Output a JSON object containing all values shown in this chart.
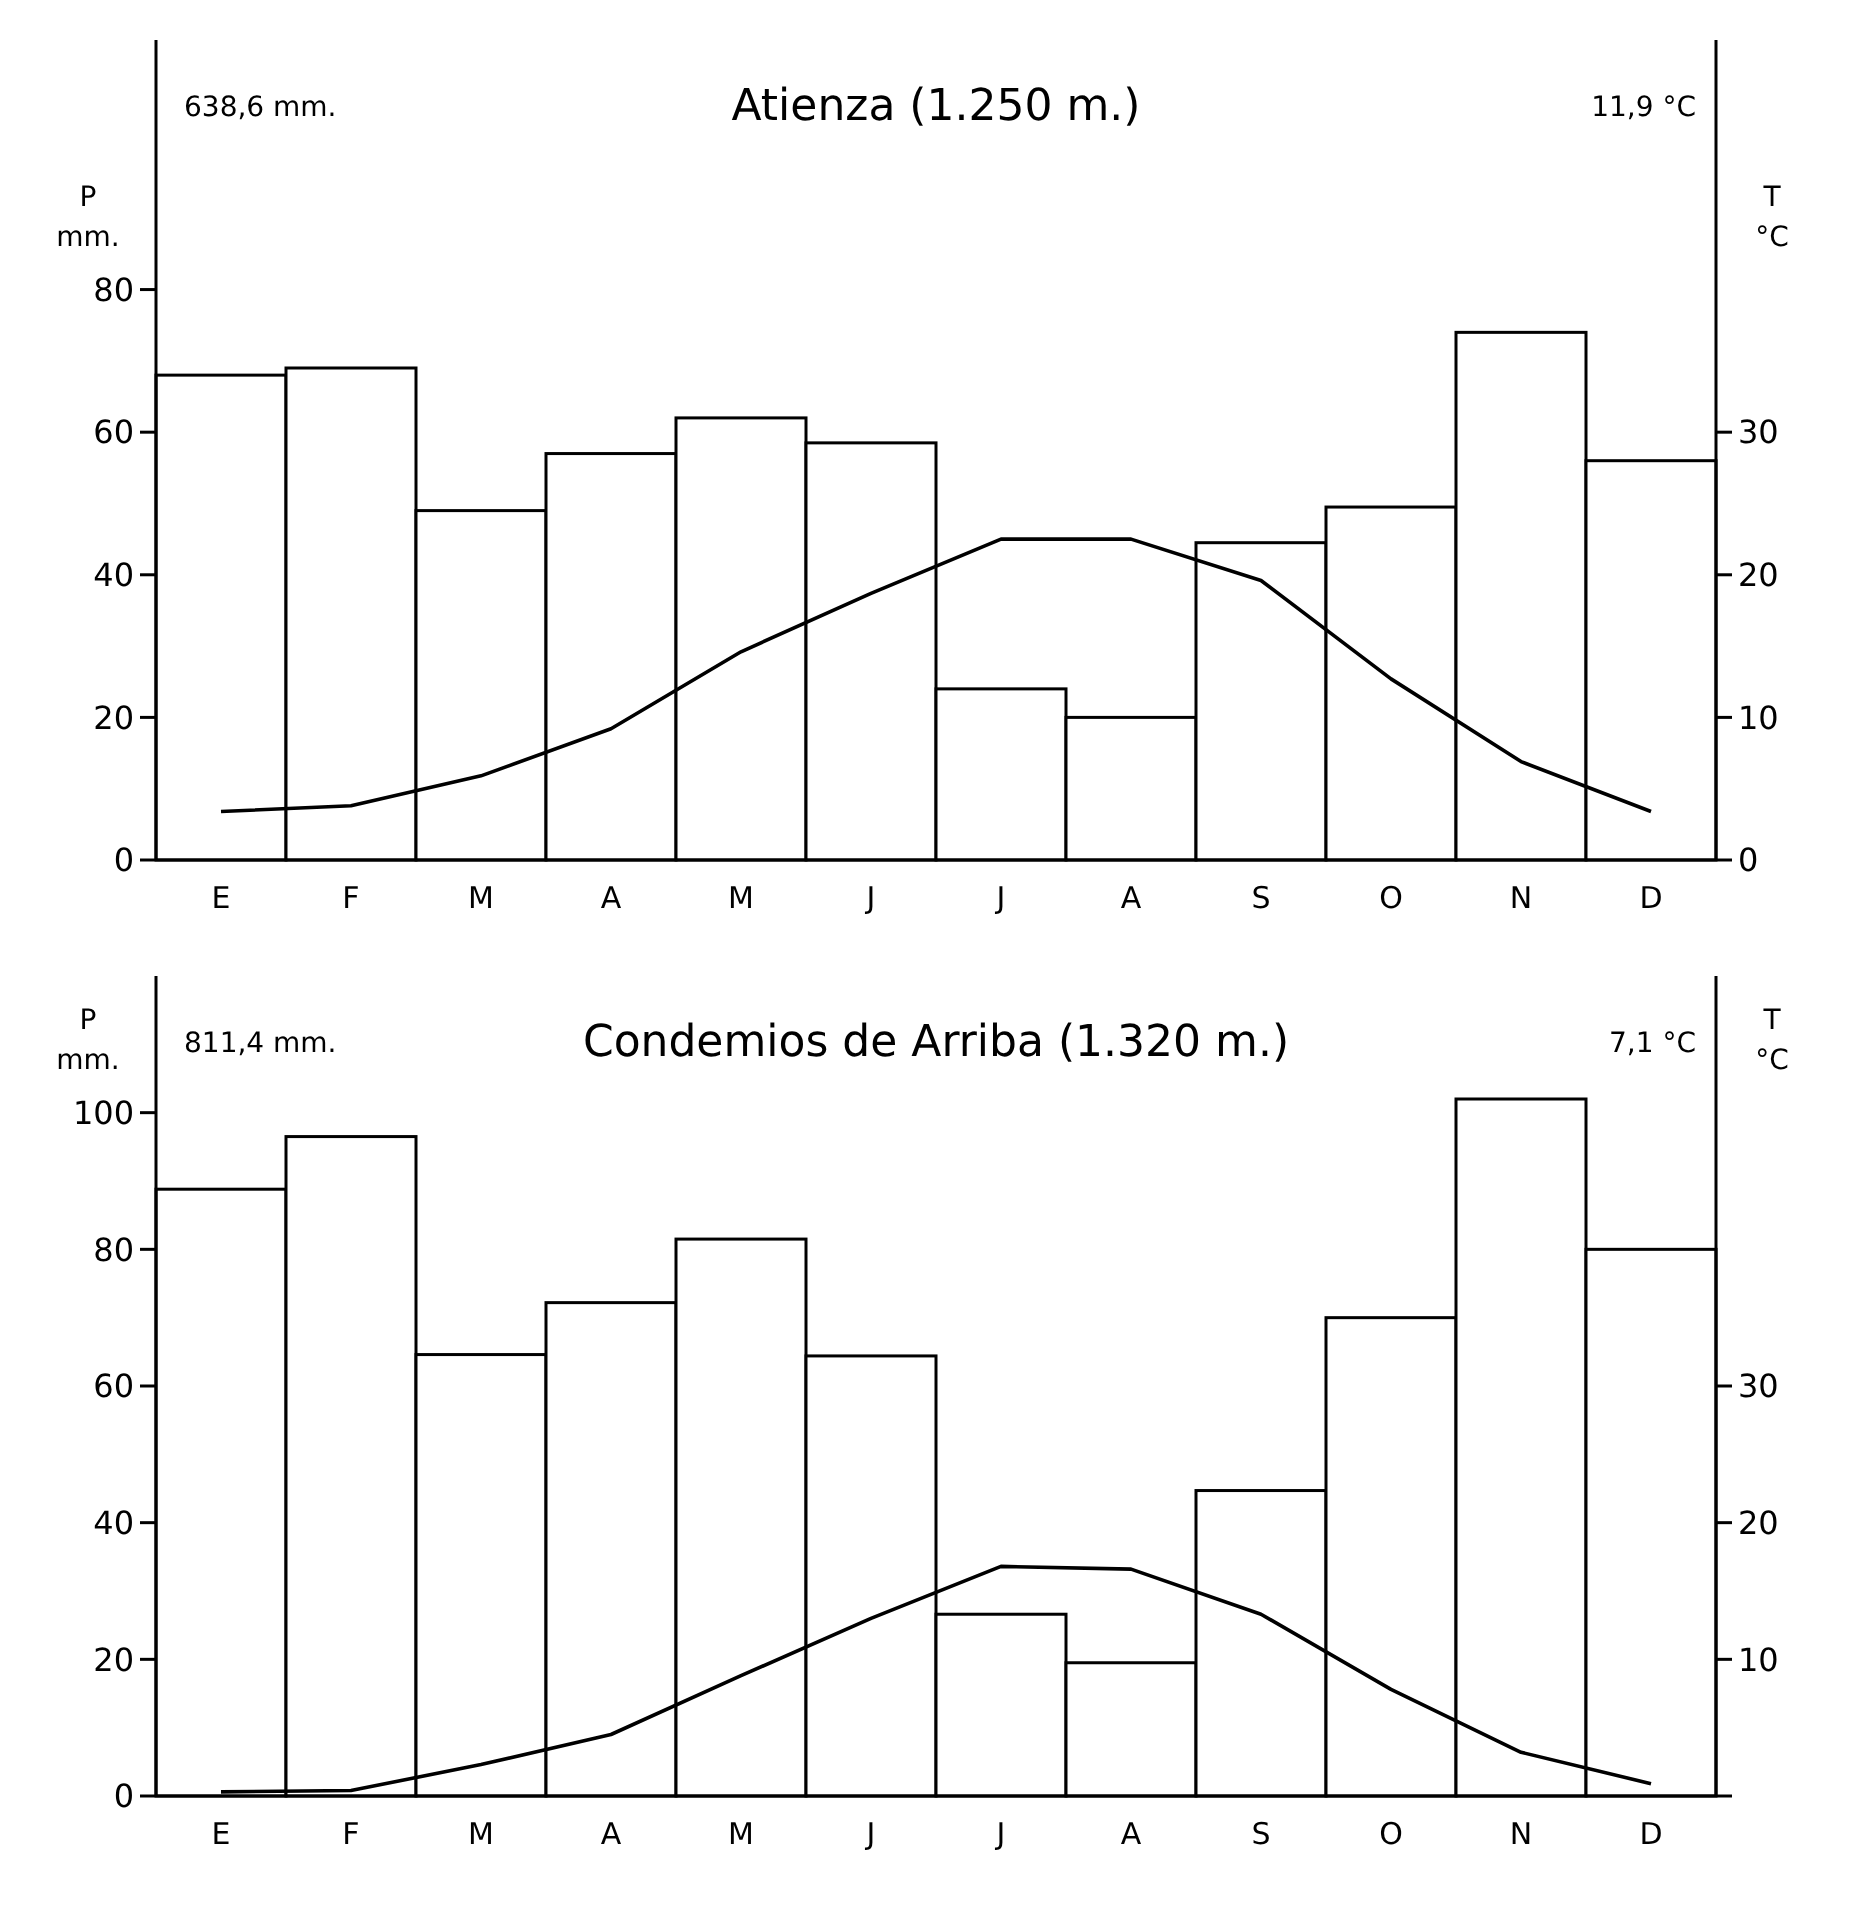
{
  "chart_data": [
    {
      "type": "bar",
      "title": "Atienza (1.250 m.)",
      "ylabel": "P mm.",
      "y2label": "T °C",
      "categories": [
        "E",
        "F",
        "M",
        "A",
        "M",
        "J",
        "J",
        "A",
        "S",
        "O",
        "N",
        "D"
      ],
      "series": [
        {
          "color": "#ffffff",
          "values": [
            68,
            69,
            49,
            57,
            62,
            58.5,
            24,
            20,
            44.5,
            49.5,
            74,
            56
          ]
        },
        {
          "type": "line",
          "axis": "y2",
          "color": "#000000",
          "values": [
            3.4,
            3.8,
            5.9,
            9.2,
            14.6,
            18.7,
            22.5,
            22.5,
            19.6,
            12.7,
            6.9,
            3.4
          ]
        }
      ],
      "ylim": [
        0,
        115
      ],
      "yticks": [
        0,
        20,
        40,
        60,
        80
      ],
      "y2lim": [
        0,
        57.5
      ],
      "y2ticks": [
        0,
        10,
        20,
        30
      ],
      "annotations": [
        "638,6 mm.",
        "11,9 °C"
      ],
      "grid": false,
      "marker": "none",
      "line_style": "solid"
    },
    {
      "type": "bar",
      "title": "Condemios de Arriba (1.320 m.)",
      "ylabel": "P mm.",
      "y2label": "T °C",
      "categories": [
        "E",
        "F",
        "M",
        "A",
        "M",
        "J",
        "J",
        "A",
        "S",
        "O",
        "N",
        "D"
      ],
      "series": [
        {
          "color": "#ffffff",
          "values": [
            88.8,
            96.5,
            64.6,
            72.2,
            81.5,
            64.4,
            26.6,
            19.5,
            44.7,
            70,
            102,
            80
          ]
        },
        {
          "type": "line",
          "axis": "y2",
          "color": "#000000",
          "values": [
            0.3,
            0.4,
            2.3,
            4.5,
            8.8,
            13,
            16.8,
            16.6,
            13.3,
            7.8,
            3.2,
            0.9
          ]
        }
      ],
      "ylim": [
        0,
        120
      ],
      "yticks": [
        0,
        20,
        40,
        60,
        80,
        100
      ],
      "y2lim": [
        0,
        60
      ],
      "y2ticks": [
        {
          "value": 0,
          "label": null
        },
        10,
        20,
        30
      ],
      "annotations": [
        "811,4 mm.",
        "7,1 °C"
      ],
      "grid": false,
      "marker": "none",
      "line_style": "solid"
    }
  ]
}
